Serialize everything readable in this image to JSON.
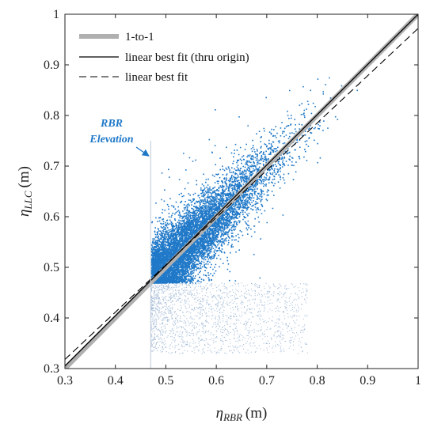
{
  "chart_data": {
    "type": "scatter",
    "title": "",
    "xlabel": {
      "symbol": "η",
      "subscript": "RBR",
      "unit": "(m)"
    },
    "ylabel": {
      "symbol": "η",
      "subscript": "LLC",
      "unit": "(m)"
    },
    "xlim": [
      0.3,
      1.0
    ],
    "ylim": [
      0.3,
      1.0
    ],
    "xticks": [
      "0.3",
      "0.4",
      "0.5",
      "0.6",
      "0.7",
      "0.8",
      "0.9",
      "1"
    ],
    "yticks": [
      "0.3",
      "0.4",
      "0.5",
      "0.6",
      "0.7",
      "0.8",
      "0.9",
      "1"
    ],
    "grid": false,
    "legend": {
      "position": "top-left",
      "entries": [
        {
          "label": "1-to-1",
          "style": "thick-solid",
          "color": "#b0b0b0"
        },
        {
          "label": "linear best fit (thru origin)",
          "style": "solid",
          "color": "#000000"
        },
        {
          "label": "linear best fit",
          "style": "dashed",
          "color": "#000000"
        }
      ]
    },
    "lines": [
      {
        "name": "1-to-1",
        "x": [
          0.3,
          1.0
        ],
        "y": [
          0.3,
          1.0
        ],
        "color": "#b0b0b0"
      },
      {
        "name": "linear best fit (thru origin)",
        "x": [
          0.3,
          1.0
        ],
        "y": [
          0.305,
          1.0
        ],
        "color": "#000000"
      },
      {
        "name": "linear best fit",
        "x": [
          0.3,
          1.0
        ],
        "y": [
          0.318,
          0.972
        ],
        "color": "#000000"
      }
    ],
    "rbr_elevation": 0.47,
    "rbr_elevation_line_top": 0.75,
    "annotation": {
      "lines": [
        "RBR",
        "Elevation"
      ],
      "arrow_tip": {
        "x": 0.468,
        "y": 0.745
      },
      "color": "#1f78c8"
    },
    "series": [
      {
        "role": "above-elevation",
        "color": "#1f78c8",
        "count": 9000,
        "x_range": [
          0.47,
          0.88
        ],
        "center": {
          "x": 0.6,
          "y": 0.6
        },
        "slope": 0.97,
        "scatter_sd": 0.035
      },
      {
        "role": "below-elevation",
        "color": "#a9bfd9",
        "count": 1800,
        "x_range": [
          0.47,
          0.78
        ],
        "y_range": [
          0.33,
          0.47
        ]
      }
    ]
  }
}
